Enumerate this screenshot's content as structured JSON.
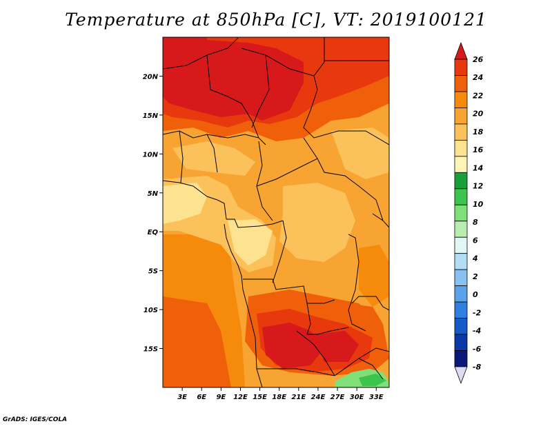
{
  "title": "Temperature at 850hPa [C], VT: 2019100121",
  "credit": "GrADS: IGES/COLA",
  "map": {
    "region": "Central Africa",
    "projection": "latlon",
    "lon_range": [
      0,
      35
    ],
    "lat_range": [
      -20,
      25
    ],
    "lon_ticks": [
      "3E",
      "6E",
      "9E",
      "12E",
      "15E",
      "18E",
      "21E",
      "24E",
      "27E",
      "30E",
      "33E"
    ],
    "lat_ticks": [
      "20N",
      "15N",
      "10N",
      "5N",
      "EQ",
      "5S",
      "10S",
      "15S"
    ]
  },
  "colorbar": {
    "labels": [
      "26",
      "24",
      "22",
      "20",
      "18",
      "16",
      "14",
      "12",
      "10",
      "8",
      "6",
      "4",
      "2",
      "0",
      "-2",
      "-4",
      "-6",
      "-8"
    ],
    "colors": [
      "#d7191c",
      "#e8380d",
      "#f0600a",
      "#f58a0b",
      "#f8a433",
      "#fbc25b",
      "#fde38f",
      "#fff4b8",
      "#1a9e3a",
      "#3cc44c",
      "#7fe07a",
      "#b8efb0",
      "#e2f7f5",
      "#b3dcf5",
      "#86c1f0",
      "#5aa3ea",
      "#2e7fdf",
      "#1659c9",
      "#0b3aa8",
      "#0a1a7a",
      "#dcdcf0"
    ]
  },
  "fields": {
    "ocean": "#f8a433",
    "dark_red": "#d7191c",
    "red": "#e8380d",
    "orange_red": "#f0600a",
    "orange": "#f58a0b",
    "light_orange": "#f8a433",
    "yellow": "#fbc25b",
    "pale_yellow": "#fde38f",
    "green": "#3cc44c",
    "light_green": "#7fe07a"
  }
}
